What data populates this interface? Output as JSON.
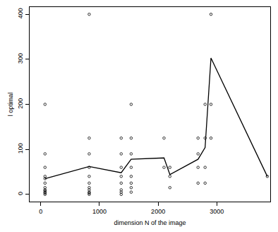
{
  "chart_data": {
    "type": "scatter",
    "x_label": "dimension N of the image",
    "y_label": "l optimal",
    "xlim": [
      -190,
      3910
    ],
    "xticks": [
      0,
      1000,
      2000,
      3000
    ],
    "ylim": [
      -16,
      416
    ],
    "yticks": [
      0,
      100,
      200,
      300,
      400
    ],
    "grid": false,
    "series": [
      {
        "type": "scatter",
        "marker": "circle-open",
        "color": "#000000",
        "x": [
          72,
          72,
          72,
          72,
          72,
          72,
          72,
          72,
          72,
          72,
          72,
          72,
          825,
          825,
          825,
          825,
          825,
          825,
          825,
          825,
          825,
          825,
          825,
          1370,
          1370,
          1370,
          1370,
          1370,
          1370,
          1370,
          1370,
          1540,
          1540,
          1540,
          1540,
          1540,
          1540,
          1540,
          1540,
          2100,
          2100,
          2200,
          2200,
          2200,
          2680,
          2680,
          2680,
          2680,
          2800,
          2800,
          2800,
          2800,
          2900,
          2900,
          2900,
          3860
        ],
        "values": [
          0,
          3,
          5,
          8,
          10,
          15,
          25,
          35,
          40,
          60,
          90,
          200,
          0,
          3,
          5,
          10,
          15,
          25,
          40,
          60,
          90,
          125,
          400,
          0,
          5,
          10,
          25,
          40,
          60,
          90,
          125,
          5,
          15,
          25,
          40,
          60,
          90,
          125,
          200,
          60,
          125,
          15,
          40,
          60,
          25,
          60,
          90,
          125,
          25,
          60,
          125,
          200,
          125,
          200,
          400,
          40
        ]
      },
      {
        "type": "line",
        "line_style": "solid",
        "color": "#000000",
        "x": [
          72,
          825,
          1370,
          1540,
          2100,
          2200,
          2680,
          2800,
          2900,
          3860
        ],
        "values": [
          35,
          62,
          48,
          78,
          81,
          44,
          78,
          104,
          303,
          40
        ]
      }
    ]
  }
}
